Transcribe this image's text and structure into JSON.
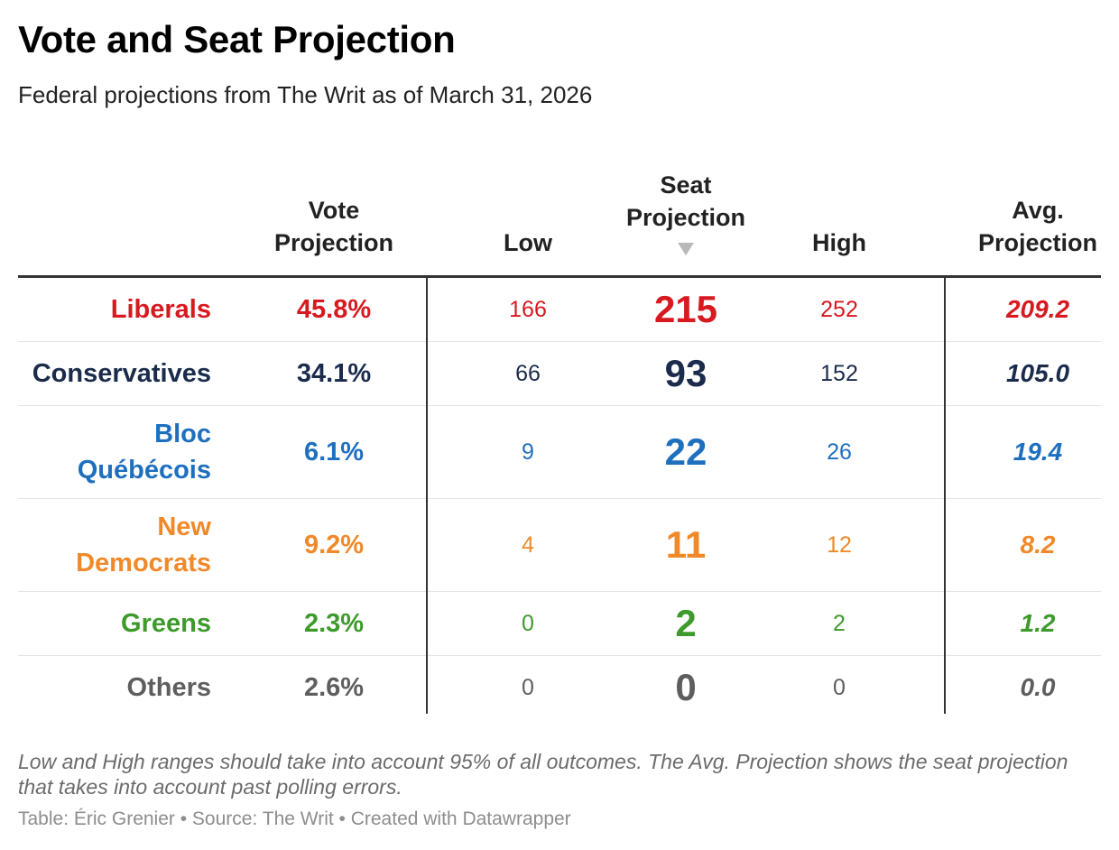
{
  "title": "Vote and Seat Projection",
  "subtitle": "Federal projections from The Writ as of March 31, 2026",
  "columns": {
    "vote_line1": "Vote",
    "vote_line2": "Projection",
    "low": "Low",
    "seat_line1": "Seat",
    "seat_line2": "Projection",
    "high": "High",
    "avg_line1": "Avg.",
    "avg_line2": "Projection"
  },
  "icons": {
    "sort": "sort-descending-triangle-icon"
  },
  "chart_data": {
    "type": "table",
    "columns": [
      "Vote Projection",
      "Low",
      "Seat Projection",
      "High",
      "Avg. Projection"
    ],
    "sorted_by": "Seat Projection",
    "rows": [
      {
        "party": "Liberals",
        "color": "#d71920",
        "vote": "45.8%",
        "low": "166",
        "seat": "215",
        "high": "252",
        "avg": "209.2"
      },
      {
        "party": "Conservatives",
        "color": "#1a2b4c",
        "vote": "34.1%",
        "low": "66",
        "seat": "93",
        "high": "152",
        "avg": "105.0"
      },
      {
        "party": "Bloc Québécois",
        "color": "#1f6fbf",
        "vote": "6.1%",
        "low": "9",
        "seat": "22",
        "high": "26",
        "avg": "19.4"
      },
      {
        "party": "New Democrats",
        "color": "#f0892a",
        "vote": "9.2%",
        "low": "4",
        "seat": "11",
        "high": "12",
        "avg": "8.2"
      },
      {
        "party": "Greens",
        "color": "#3d9a2b",
        "vote": "2.3%",
        "low": "0",
        "seat": "2",
        "high": "2",
        "avg": "1.2"
      },
      {
        "party": "Others",
        "color": "#5e5e5e",
        "vote": "2.6%",
        "low": "0",
        "seat": "0",
        "high": "0",
        "avg": "0.0"
      }
    ]
  },
  "notes": "Low and High ranges should take into account 95% of all outcomes. The Avg. Projection shows the seat projection that takes into account past polling errors.",
  "byline": "Table: Éric Grenier • Source: The Writ • Created with Datawrapper"
}
